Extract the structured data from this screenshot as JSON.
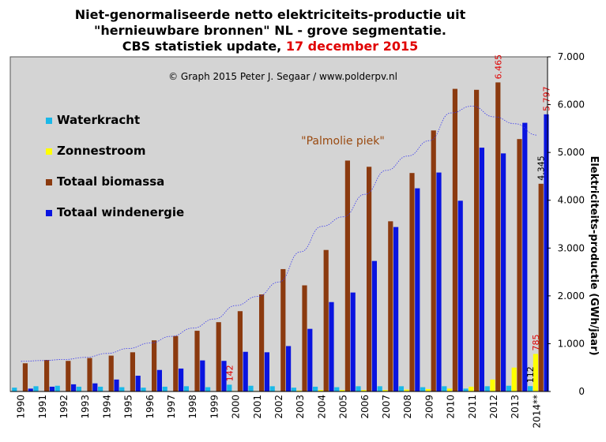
{
  "title": {
    "line1": "Niet-genormaliseerde  netto  elektriciteits-productie  uit",
    "line2": "\"hernieuwbare bronnen\" NL - grove segmentatie.",
    "line3_prefix": "CBS statistiek  update, ",
    "line3_date": "17 december 2015"
  },
  "copyright": "© Graph  2015  Peter J. Segaar / www.polderpv.nl",
  "annotation": "\"Palmolie piek\"",
  "colors": {
    "plot_bg": "#d4d4d4",
    "waterkracht": "#1ab8e8",
    "zonnestroom": "#ffff00",
    "biomassa": "#8b3a0f",
    "wind": "#0a14e0",
    "label_red": "#e00000",
    "annotation": "#9a4a10",
    "trend": "#3a3aee"
  },
  "chart_data": {
    "type": "bar",
    "title": "Niet-genormaliseerde netto elektriciteits-productie uit \"hernieuwbare bronnen\" NL - grove segmentatie. CBS statistiek update, 17 december 2015",
    "ylabel": "Elektriciteits-productie  (GWh/jaar)",
    "xlabel": "",
    "ylim": [
      0,
      7000
    ],
    "yticks": [
      "0",
      "1.000",
      "2.000",
      "3.000",
      "4.000",
      "5.000",
      "6.000",
      "7.000"
    ],
    "grid": false,
    "legend_position": "left",
    "categories": [
      "1990",
      "1991",
      "1992",
      "1993",
      "1994",
      "1995",
      "1996",
      "1997",
      "1998",
      "1999",
      "2000",
      "2001",
      "2002",
      "2003",
      "2004",
      "2005",
      "2006",
      "2007",
      "2008",
      "2009",
      "2010",
      "2011",
      "2012",
      "2013",
      "2014**"
    ],
    "series": [
      {
        "name": "Waterkracht",
        "values": [
          80,
          110,
          120,
          100,
          100,
          90,
          80,
          100,
          110,
          90,
          142,
          120,
          110,
          80,
          100,
          90,
          110,
          110,
          110,
          90,
          110,
          60,
          110,
          120,
          112
        ]
      },
      {
        "name": "Zonnestroom",
        "values": [
          0,
          0,
          0,
          0,
          0,
          0,
          0,
          0,
          0,
          0,
          10,
          10,
          10,
          20,
          30,
          30,
          30,
          30,
          40,
          50,
          60,
          100,
          250,
          500,
          785
        ]
      },
      {
        "name": "Totaal biomassa",
        "values": [
          590,
          660,
          640,
          700,
          750,
          820,
          1070,
          1160,
          1270,
          1450,
          1680,
          2030,
          2560,
          2220,
          2960,
          4830,
          4700,
          3560,
          4570,
          5460,
          6330,
          6310,
          6465,
          5280,
          4345
        ]
      },
      {
        "name": "Totaal windenergie",
        "values": [
          60,
          100,
          150,
          170,
          250,
          330,
          450,
          480,
          650,
          640,
          830,
          820,
          950,
          1310,
          1870,
          2070,
          2730,
          3440,
          4250,
          4580,
          3990,
          5100,
          4980,
          5620,
          5797
        ]
      }
    ],
    "data_labels": [
      {
        "category": "2000",
        "series": "Waterkracht",
        "text": "142"
      },
      {
        "category": "2012",
        "series": "Totaal biomassa",
        "text": "6.465"
      },
      {
        "category": "2014**",
        "series": "Totaal windenergie",
        "text": "5.797"
      },
      {
        "category": "2014**",
        "series": "Totaal biomassa",
        "text": "4.345"
      },
      {
        "category": "2014**",
        "series": "Zonnestroom",
        "text": "785"
      },
      {
        "category": "2014**",
        "series": "Waterkracht",
        "text": "112"
      }
    ],
    "trendline": {
      "series": "Totaal biomassa",
      "style": "dotted"
    }
  }
}
